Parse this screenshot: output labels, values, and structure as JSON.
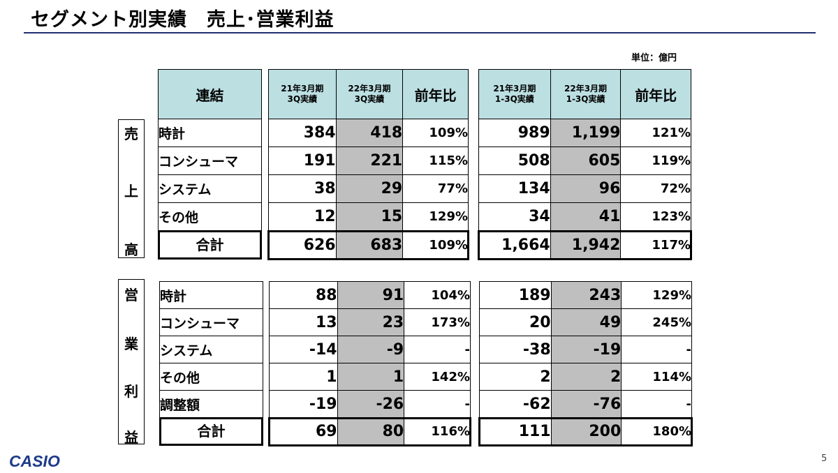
{
  "title": "セグメント別実績　売上･営業利益",
  "unit": "単位：億円",
  "logo": "CASIO",
  "page_number": "5",
  "sales_side_label": [
    "売",
    "上",
    "高"
  ],
  "profit_side_label": [
    "営",
    "業",
    "利",
    "益"
  ],
  "header": {
    "consolidated": "連結",
    "q_prev": [
      "21年3月期",
      "3Q実績"
    ],
    "q_curr": [
      "22年3月期",
      "3Q実績"
    ],
    "yoy": "前年比",
    "cum_prev": [
      "21年3月期",
      "1-3Q実績"
    ],
    "cum_curr": [
      "22年3月期",
      "1-3Q実績"
    ]
  },
  "sales": {
    "rows": [
      {
        "label": "時計",
        "q_prev": "384",
        "q_curr": "418",
        "q_yoy": "109%",
        "c_prev": "989",
        "c_curr": "1,199",
        "c_yoy": "121%"
      },
      {
        "label": "コンシューマ",
        "q_prev": "191",
        "q_curr": "221",
        "q_yoy": "115%",
        "c_prev": "508",
        "c_curr": "605",
        "c_yoy": "119%"
      },
      {
        "label": "システム",
        "q_prev": "38",
        "q_curr": "29",
        "q_yoy": "77%",
        "c_prev": "134",
        "c_curr": "96",
        "c_yoy": "72%"
      },
      {
        "label": "その他",
        "q_prev": "12",
        "q_curr": "15",
        "q_yoy": "129%",
        "c_prev": "34",
        "c_curr": "41",
        "c_yoy": "123%"
      }
    ],
    "total": {
      "label": "合計",
      "q_prev": "626",
      "q_curr": "683",
      "q_yoy": "109%",
      "c_prev": "1,664",
      "c_curr": "1,942",
      "c_yoy": "117%"
    }
  },
  "profit": {
    "rows": [
      {
        "label": "時計",
        "q_prev": "88",
        "q_curr": "91",
        "q_yoy": "104%",
        "c_prev": "189",
        "c_curr": "243",
        "c_yoy": "129%"
      },
      {
        "label": "コンシューマ",
        "q_prev": "13",
        "q_curr": "23",
        "q_yoy": "173%",
        "c_prev": "20",
        "c_curr": "49",
        "c_yoy": "245%"
      },
      {
        "label": "システム",
        "q_prev": "-14",
        "q_curr": "-9",
        "q_yoy": "-",
        "c_prev": "-38",
        "c_curr": "-19",
        "c_yoy": "-"
      },
      {
        "label": "その他",
        "q_prev": "1",
        "q_curr": "1",
        "q_yoy": "142%",
        "c_prev": "2",
        "c_curr": "2",
        "c_yoy": "114%"
      },
      {
        "label": "調整額",
        "q_prev": "-19",
        "q_curr": "-26",
        "q_yoy": "-",
        "c_prev": "-62",
        "c_curr": "-76",
        "c_yoy": "-"
      }
    ],
    "total": {
      "label": "合計",
      "q_prev": "69",
      "q_curr": "80",
      "q_yoy": "116%",
      "c_prev": "111",
      "c_curr": "200",
      "c_yoy": "180%"
    }
  }
}
